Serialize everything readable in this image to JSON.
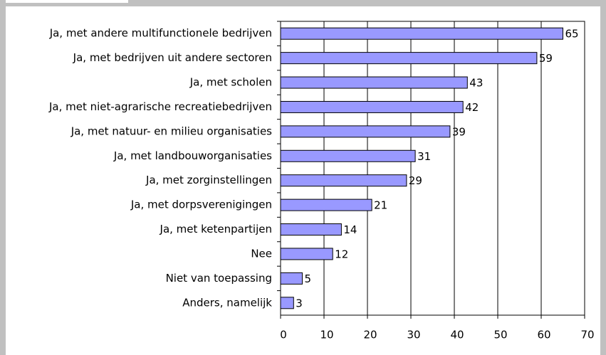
{
  "chart_data": {
    "type": "bar",
    "orientation": "horizontal",
    "categories": [
      "Ja, met andere multifunctionele bedrijven",
      "Ja, met bedrijven uit andere sectoren",
      "Ja, met scholen",
      "Ja, met niet-agrarische recreatiebedrijven",
      "Ja, met natuur- en milieu organisaties",
      "Ja, met landbouworganisaties",
      "Ja, met zorginstellingen",
      "Ja, met dorpsverenigingen",
      "Ja, met ketenpartijen",
      "Nee",
      "Niet van toepassing",
      "Anders, namelijk"
    ],
    "values": [
      65,
      59,
      43,
      42,
      39,
      31,
      29,
      21,
      14,
      12,
      5,
      3
    ],
    "color": "#9999ff",
    "xlim": [
      0,
      70
    ],
    "xticks": [
      0,
      10,
      20,
      30,
      40,
      50,
      60,
      70
    ],
    "grid": true
  }
}
